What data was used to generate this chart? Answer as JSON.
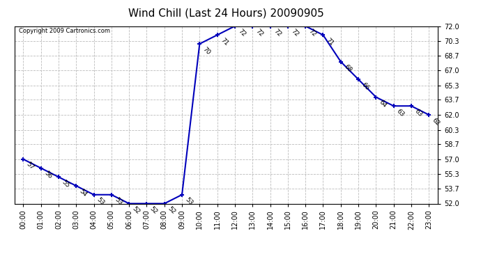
{
  "title": "Wind Chill (Last 24 Hours) 20090905",
  "copyright_text": "Copyright 2009 Cartronics.com",
  "x_labels": [
    "00:00",
    "01:00",
    "02:00",
    "03:00",
    "04:00",
    "05:00",
    "06:00",
    "07:00",
    "08:00",
    "09:00",
    "10:00",
    "11:00",
    "12:00",
    "13:00",
    "14:00",
    "15:00",
    "16:00",
    "17:00",
    "18:00",
    "19:00",
    "20:00",
    "21:00",
    "22:00",
    "23:00"
  ],
  "x_values": [
    0,
    1,
    2,
    3,
    4,
    5,
    6,
    7,
    8,
    9,
    10,
    11,
    12,
    13,
    14,
    15,
    16,
    17,
    18,
    19,
    20,
    21,
    22,
    23
  ],
  "y_values": [
    57,
    56,
    55,
    54,
    53,
    53,
    52,
    52,
    52,
    53,
    70,
    71,
    72,
    72,
    72,
    72,
    72,
    71,
    68,
    66,
    64,
    63,
    63,
    62
  ],
  "ylim": [
    52.0,
    72.0
  ],
  "y_ticks": [
    52.0,
    53.7,
    55.3,
    57.0,
    58.7,
    60.3,
    62.0,
    63.7,
    65.3,
    67.0,
    68.7,
    70.3,
    72.0
  ],
  "line_color": "#0000bb",
  "marker_color": "#0000bb",
  "background_color": "#ffffff",
  "grid_color": "#bbbbbb",
  "title_fontsize": 11,
  "label_fontsize": 7,
  "annotation_fontsize": 6.5,
  "copyright_fontsize": 6
}
